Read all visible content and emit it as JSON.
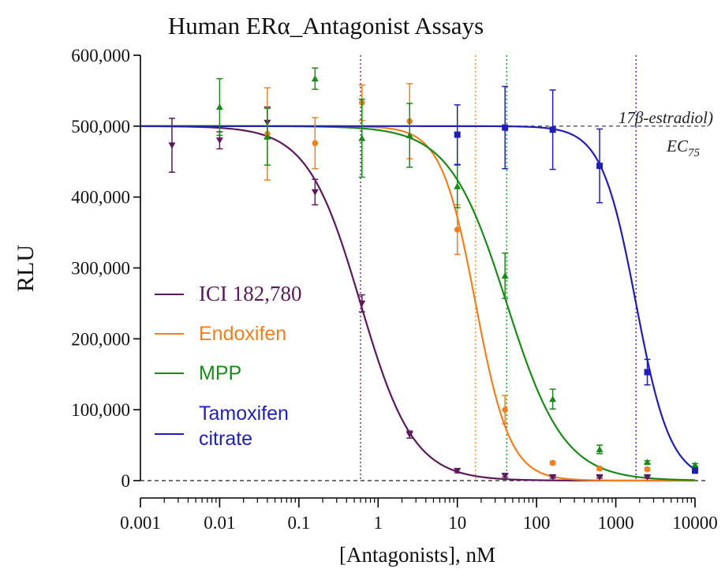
{
  "chart_data": {
    "type": "scatter",
    "title": "Human ERα_Antagonist Assays",
    "xlabel": "[Antagonists], nM",
    "ylabel": "RLU",
    "x_scale": "log",
    "xlim": [
      0.001,
      10000
    ],
    "ylim": [
      0,
      600000
    ],
    "x_ticks": [
      0.001,
      0.01,
      0.1,
      1,
      10,
      100,
      1000,
      10000
    ],
    "x_tick_labels": [
      "0.001",
      "0.01",
      "0.1",
      "1",
      "10",
      "100",
      "1000",
      "10000"
    ],
    "y_ticks": [
      0,
      100000,
      200000,
      300000,
      400000,
      500000,
      600000
    ],
    "y_tick_labels": [
      "0",
      "100,000",
      "200,000",
      "300,000",
      "400,000",
      "500,000",
      "600,000"
    ],
    "grid": false,
    "legend": "left",
    "reference_lines": [
      {
        "y": 500000,
        "label_line1": "17β-estradiol)",
        "label_line2_main": "EC",
        "label_line2_sub": "75",
        "style": "dashed",
        "color": "#555555"
      },
      {
        "y": 0,
        "style": "dashed",
        "color": "#222222"
      }
    ],
    "series": [
      {
        "name": "ICI 182,780",
        "color": "#5b1a5c",
        "marker": "triangle-down",
        "fit": {
          "top": 500000,
          "bottom": 0,
          "ic50": 0.6,
          "hill": 1.3
        },
        "ic50_line": 0.6,
        "points": [
          {
            "x": 0.0025,
            "y": 473000,
            "err": 38000
          },
          {
            "x": 0.01,
            "y": 480000,
            "err": 12000
          },
          {
            "x": 0.04,
            "y": 505000,
            "err": 22000
          },
          {
            "x": 0.16,
            "y": 407000,
            "err": 18000
          },
          {
            "x": 0.625,
            "y": 250000,
            "err": 12000
          },
          {
            "x": 2.5,
            "y": 65000,
            "err": 5000
          },
          {
            "x": 10,
            "y": 14000,
            "err": 3000
          },
          {
            "x": 40,
            "y": 7000,
            "err": 2000
          },
          {
            "x": 160,
            "y": 5000,
            "err": 1500
          },
          {
            "x": 625,
            "y": 5000,
            "err": 1500
          },
          {
            "x": 2500,
            "y": 5000,
            "err": 1500
          }
        ]
      },
      {
        "name": "Endoxifen",
        "color": "#f07f1f",
        "marker": "circle",
        "fit": {
          "top": 500000,
          "bottom": 0,
          "ic50": 17,
          "hill": 2.0
        },
        "ic50_line": 17,
        "points": [
          {
            "x": 0.04,
            "y": 489000,
            "err": 65000
          },
          {
            "x": 0.16,
            "y": 476000,
            "err": 36000
          },
          {
            "x": 0.625,
            "y": 533000,
            "err": 25000
          },
          {
            "x": 2.5,
            "y": 507000,
            "err": 53000
          },
          {
            "x": 10,
            "y": 354000,
            "err": 35000
          },
          {
            "x": 40,
            "y": 100000,
            "err": 20000
          },
          {
            "x": 160,
            "y": 25000,
            "err": 2000
          },
          {
            "x": 625,
            "y": 17000,
            "err": 2000
          },
          {
            "x": 2500,
            "y": 16000,
            "err": 2000
          }
        ]
      },
      {
        "name": "MPP",
        "color": "#1a8a1a",
        "marker": "triangle-up",
        "fit": {
          "top": 500000,
          "bottom": 0,
          "ic50": 42,
          "hill": 1.2
        },
        "ic50_line": 42,
        "points": [
          {
            "x": 0.01,
            "y": 527000,
            "err": 40000
          },
          {
            "x": 0.04,
            "y": 485000,
            "err": 40000
          },
          {
            "x": 0.16,
            "y": 567000,
            "err": 15000
          },
          {
            "x": 0.625,
            "y": 483000,
            "err": 55000
          },
          {
            "x": 2.5,
            "y": 487000,
            "err": 45000
          },
          {
            "x": 10,
            "y": 415000,
            "err": 30000
          },
          {
            "x": 40,
            "y": 289000,
            "err": 32000
          },
          {
            "x": 160,
            "y": 115000,
            "err": 14000
          },
          {
            "x": 625,
            "y": 44000,
            "err": 6000
          },
          {
            "x": 2500,
            "y": 26000,
            "err": 2000
          },
          {
            "x": 10000,
            "y": 22000,
            "err": 2000
          }
        ]
      },
      {
        "name": "Tamoxifen citrate",
        "legend_lines": [
          "Tamoxifen",
          "citrate"
        ],
        "color": "#1f1fb4",
        "marker": "square",
        "fit": {
          "top": 500000,
          "bottom": 0,
          "ic50": 1800,
          "hill": 2.0
        },
        "ic50_line": 1800,
        "points": [
          {
            "x": 10,
            "y": 488000,
            "err": 42000
          },
          {
            "x": 40,
            "y": 498000,
            "err": 58000
          },
          {
            "x": 160,
            "y": 495000,
            "err": 56000
          },
          {
            "x": 625,
            "y": 444000,
            "err": 52000
          },
          {
            "x": 2500,
            "y": 153000,
            "err": 18000
          },
          {
            "x": 10000,
            "y": 14000,
            "err": 2000
          }
        ]
      }
    ]
  }
}
